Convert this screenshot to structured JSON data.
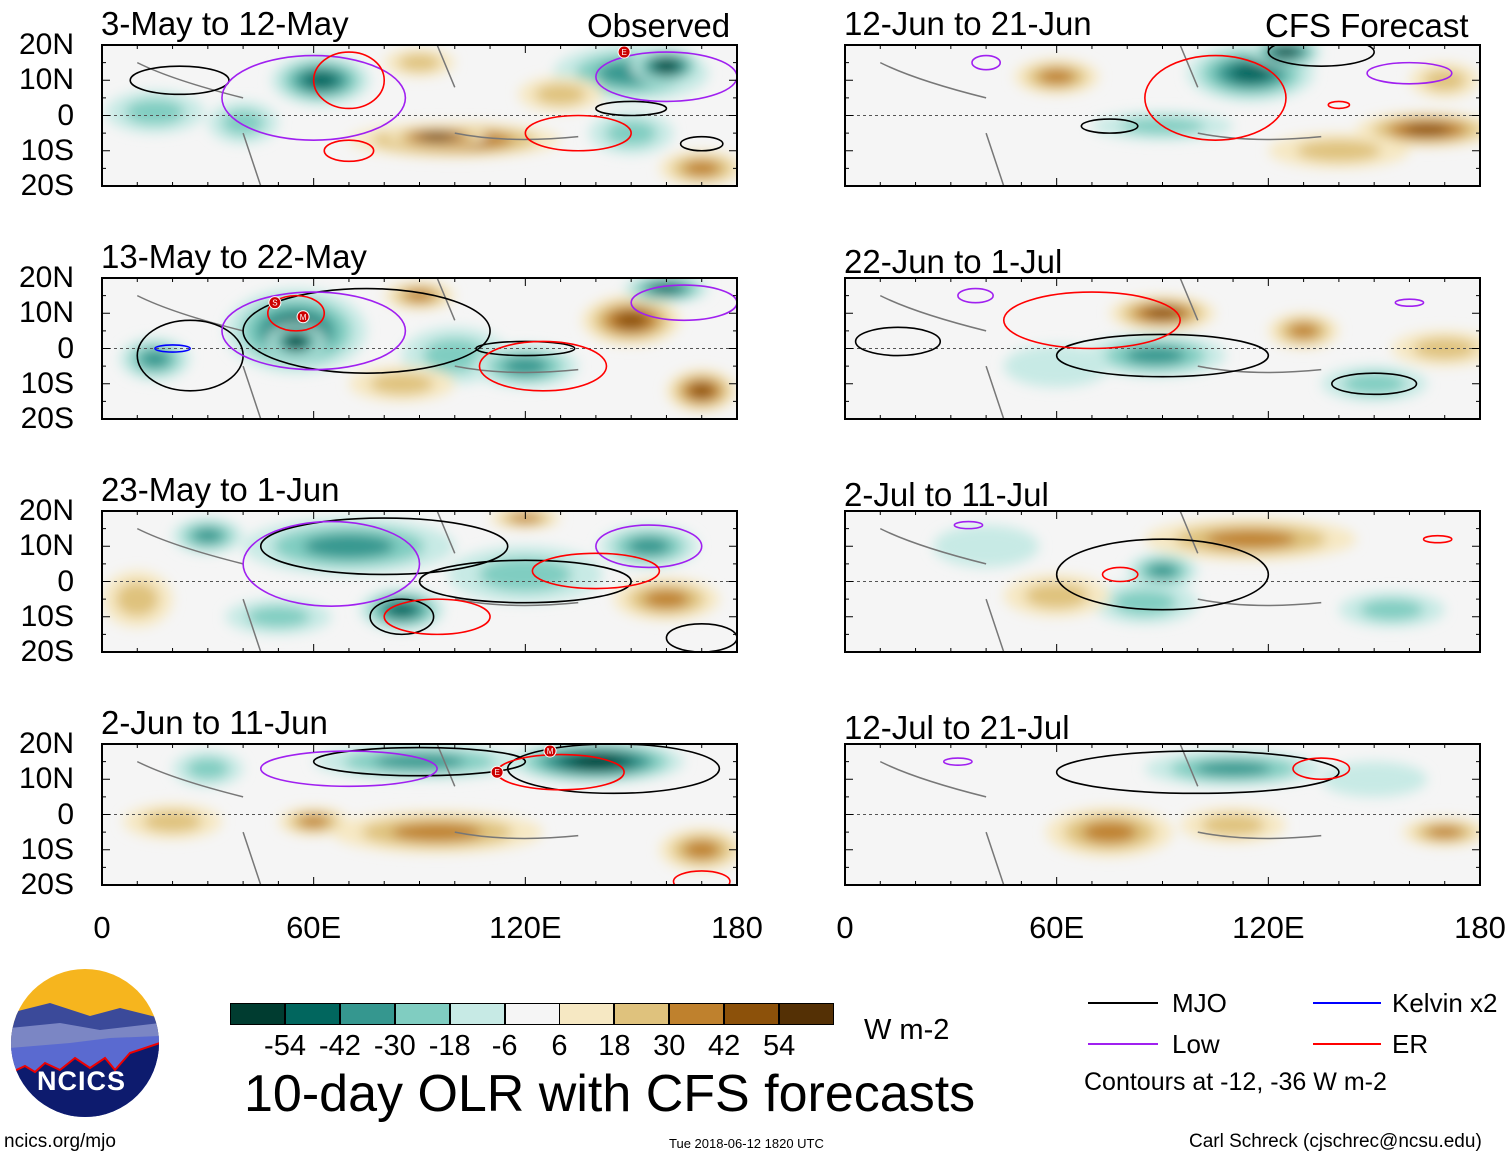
{
  "colors": {
    "bins": [
      -54,
      -42,
      -30,
      -18,
      -6,
      6,
      18,
      30,
      42,
      54
    ],
    "palette": [
      "#003c30",
      "#01665e",
      "#35978f",
      "#80cdc1",
      "#c7eae5",
      "#f5f5f5",
      "#f6e8c3",
      "#dfc27d",
      "#bf812d",
      "#8c510a",
      "#543005"
    ],
    "mjo": "#000000",
    "low": "#a020f0",
    "kelvin": "#0000ff",
    "er": "#ff0000"
  },
  "labels": {
    "observed": "Observed",
    "forecast": "CFS Forecast"
  },
  "yticks": [
    "20N",
    "10N",
    "0",
    "10S",
    "20S"
  ],
  "xticks": [
    "0",
    "60E",
    "120E",
    "180"
  ],
  "colorbar": {
    "labels": [
      "-54",
      "-42",
      "-30",
      "-18",
      "-6",
      "6",
      "18",
      "30",
      "42",
      "54"
    ],
    "units": "W m-2"
  },
  "title": "10-day OLR with CFS forecasts",
  "legend": {
    "mjo": "MJO",
    "kelvin": "Kelvin x2",
    "low": "Low",
    "er": "ER",
    "contours": "Contours at -12, -36 W m-2"
  },
  "footer": {
    "site": "ncics.org/mjo",
    "timestamp": "Tue 2018-06-12 1820 UTC",
    "author": "Carl Schreck (cjschrec@ncsu.edu)"
  },
  "logo": {
    "text": "NCICS"
  },
  "chart_data": {
    "type": "heatmap",
    "xlim": [
      0,
      180
    ],
    "ylim": [
      -20,
      20
    ],
    "panels": [
      {
        "title": "3-May to 12-May",
        "kind": "observed",
        "blobs": [
          [
            62,
            10,
            14,
            7,
            -42
          ],
          [
            150,
            12,
            22,
            8,
            -30
          ],
          [
            160,
            14,
            10,
            5,
            -54
          ],
          [
            15,
            1,
            14,
            6,
            -18
          ],
          [
            40,
            -2,
            10,
            6,
            -18
          ],
          [
            100,
            -7,
            30,
            5,
            42
          ],
          [
            95,
            -6,
            14,
            3,
            54
          ],
          [
            170,
            -15,
            12,
            5,
            30
          ],
          [
            130,
            6,
            12,
            5,
            18
          ],
          [
            150,
            -5,
            12,
            6,
            -18
          ],
          [
            90,
            15,
            10,
            4,
            18
          ]
        ],
        "contours": [
          [
            "mjo",
            22,
            10,
            14,
            4
          ],
          [
            "mjo",
            150,
            2,
            10,
            2
          ],
          [
            "mjo",
            170,
            -8,
            6,
            2
          ],
          [
            "low",
            60,
            5,
            26,
            12
          ],
          [
            "low",
            160,
            11,
            20,
            7
          ],
          [
            "er",
            70,
            10,
            10,
            8
          ],
          [
            "er",
            135,
            -5,
            15,
            5
          ],
          [
            "er",
            70,
            -10,
            7,
            3
          ]
        ],
        "markers": [
          [
            "E",
            148,
            18
          ]
        ]
      },
      {
        "title": "13-May to 22-May",
        "kind": "observed",
        "blobs": [
          [
            55,
            5,
            20,
            12,
            -42
          ],
          [
            55,
            2,
            8,
            5,
            -54
          ],
          [
            15,
            -3,
            10,
            6,
            -30
          ],
          [
            100,
            -2,
            15,
            8,
            -18
          ],
          [
            120,
            -5,
            15,
            6,
            -30
          ],
          [
            150,
            8,
            14,
            7,
            42
          ],
          [
            170,
            -12,
            10,
            6,
            42
          ],
          [
            90,
            15,
            10,
            4,
            30
          ],
          [
            160,
            17,
            12,
            4,
            -42
          ],
          [
            85,
            -10,
            15,
            5,
            18
          ]
        ],
        "contours": [
          [
            "mjo",
            25,
            -2,
            15,
            10
          ],
          [
            "mjo",
            75,
            5,
            35,
            12
          ],
          [
            "mjo",
            120,
            0,
            14,
            2
          ],
          [
            "low",
            60,
            5,
            26,
            11
          ],
          [
            "low",
            165,
            13,
            15,
            5
          ],
          [
            "er",
            55,
            10,
            8,
            5
          ],
          [
            "er",
            125,
            -5,
            18,
            7
          ],
          [
            "kelvin",
            20,
            0,
            5,
            1
          ]
        ],
        "markers": [
          [
            "S",
            49,
            13
          ],
          [
            "M",
            57,
            9
          ]
        ]
      },
      {
        "title": "23-May to 1-Jun",
        "kind": "observed",
        "blobs": [
          [
            70,
            10,
            30,
            8,
            -30
          ],
          [
            85,
            -8,
            12,
            6,
            -42
          ],
          [
            30,
            13,
            10,
            5,
            -30
          ],
          [
            120,
            2,
            22,
            8,
            -18
          ],
          [
            155,
            10,
            14,
            6,
            -30
          ],
          [
            10,
            -5,
            10,
            8,
            18
          ],
          [
            160,
            -5,
            15,
            6,
            30
          ],
          [
            50,
            -10,
            15,
            5,
            -18
          ],
          [
            120,
            18,
            10,
            3,
            30
          ]
        ],
        "contours": [
          [
            "mjo",
            80,
            10,
            35,
            8
          ],
          [
            "mjo",
            120,
            0,
            30,
            6
          ],
          [
            "mjo",
            85,
            -10,
            9,
            5
          ],
          [
            "mjo",
            170,
            -16,
            10,
            4
          ],
          [
            "low",
            65,
            5,
            25,
            12
          ],
          [
            "low",
            155,
            10,
            15,
            6
          ],
          [
            "er",
            140,
            3,
            18,
            5
          ],
          [
            "er",
            95,
            -10,
            15,
            5
          ]
        ],
        "markers": []
      },
      {
        "title": "2-Jun to 11-Jun",
        "kind": "observed",
        "blobs": [
          [
            140,
            15,
            25,
            6,
            -54
          ],
          [
            90,
            15,
            30,
            5,
            -30
          ],
          [
            95,
            -5,
            30,
            6,
            30
          ],
          [
            20,
            -2,
            14,
            5,
            18
          ],
          [
            60,
            -2,
            10,
            4,
            30
          ],
          [
            170,
            -10,
            12,
            6,
            30
          ],
          [
            30,
            13,
            10,
            5,
            -18
          ]
        ],
        "contours": [
          [
            "mjo",
            90,
            15,
            30,
            4
          ],
          [
            "mjo",
            145,
            13,
            30,
            7
          ],
          [
            "low",
            70,
            13,
            25,
            5
          ],
          [
            "er",
            130,
            12,
            18,
            5
          ],
          [
            "er",
            170,
            -19,
            8,
            3
          ]
        ],
        "markers": [
          [
            "M",
            127,
            18
          ],
          [
            "E",
            112,
            12
          ]
        ]
      },
      {
        "title": "12-Jun to 21-Jun",
        "kind": "forecast",
        "blobs": [
          [
            60,
            11,
            12,
            5,
            30
          ],
          [
            115,
            12,
            18,
            8,
            -42
          ],
          [
            125,
            18,
            10,
            4,
            -54
          ],
          [
            90,
            -3,
            20,
            4,
            -18
          ],
          [
            165,
            -4,
            20,
            5,
            42
          ],
          [
            140,
            -10,
            20,
            5,
            18
          ],
          [
            170,
            10,
            10,
            5,
            18
          ]
        ],
        "contours": [
          [
            "mjo",
            75,
            -3,
            8,
            2
          ],
          [
            "mjo",
            135,
            18,
            15,
            4
          ],
          [
            "low",
            160,
            12,
            12,
            3
          ],
          [
            "low",
            40,
            15,
            4,
            2
          ],
          [
            "er",
            105,
            5,
            20,
            12
          ],
          [
            "er",
            140,
            3,
            3,
            1
          ]
        ],
        "markers": []
      },
      {
        "title": "22-Jun to 1-Jul",
        "kind": "forecast",
        "blobs": [
          [
            90,
            10,
            15,
            5,
            42
          ],
          [
            88,
            -2,
            20,
            6,
            -30
          ],
          [
            130,
            5,
            10,
            5,
            30
          ],
          [
            170,
            0,
            15,
            5,
            18
          ],
          [
            150,
            -10,
            15,
            5,
            -18
          ],
          [
            60,
            -5,
            15,
            6,
            -6
          ]
        ],
        "contours": [
          [
            "mjo",
            15,
            2,
            12,
            4
          ],
          [
            "mjo",
            90,
            -2,
            30,
            6
          ],
          [
            "mjo",
            150,
            -10,
            12,
            3
          ],
          [
            "low",
            37,
            15,
            5,
            2
          ],
          [
            "low",
            160,
            13,
            4,
            1
          ],
          [
            "er",
            70,
            8,
            25,
            8
          ]
        ],
        "markers": []
      },
      {
        "title": "2-Jul to 11-Jul",
        "kind": "forecast",
        "blobs": [
          [
            115,
            12,
            30,
            6,
            30
          ],
          [
            90,
            3,
            10,
            5,
            -30
          ],
          [
            85,
            -6,
            15,
            6,
            -18
          ],
          [
            60,
            -4,
            15,
            6,
            18
          ],
          [
            155,
            -8,
            15,
            5,
            -18
          ],
          [
            40,
            10,
            15,
            6,
            -6
          ]
        ],
        "contours": [
          [
            "mjo",
            90,
            2,
            30,
            10
          ],
          [
            "low",
            35,
            16,
            4,
            1
          ],
          [
            "er",
            78,
            2,
            5,
            2
          ],
          [
            "er",
            168,
            12,
            4,
            1
          ]
        ],
        "markers": []
      },
      {
        "title": "12-Jul to 21-Jul",
        "kind": "forecast",
        "blobs": [
          [
            110,
            13,
            25,
            5,
            -30
          ],
          [
            75,
            -5,
            18,
            7,
            30
          ],
          [
            110,
            -3,
            15,
            5,
            18
          ],
          [
            170,
            -5,
            12,
            4,
            30
          ],
          [
            150,
            10,
            15,
            5,
            -6
          ]
        ],
        "contours": [
          [
            "mjo",
            100,
            12,
            40,
            6
          ],
          [
            "low",
            32,
            15,
            4,
            1
          ],
          [
            "er",
            135,
            13,
            8,
            3
          ]
        ],
        "markers": []
      }
    ]
  }
}
